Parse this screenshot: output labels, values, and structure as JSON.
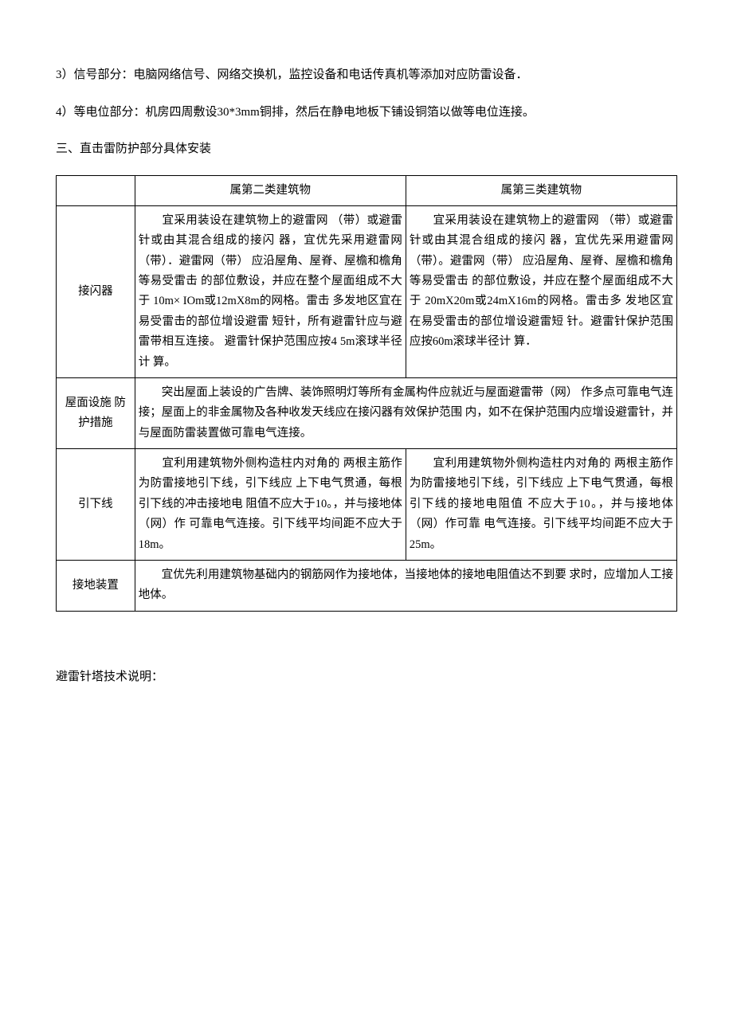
{
  "paragraphs": {
    "p1": "3）信号部分：电脑网络信号、网络交换机，监控设备和电话传真机等添加对应防雷设备．",
    "p2": "4）等电位部分：机房四周敷设30*3mm铜排，然后在静电地板下铺设铜箔以做等电位连接。",
    "p3": "三、直击雷防护部分具体安装"
  },
  "table": {
    "header": {
      "col1": "",
      "col2": "属第二类建筑物",
      "col3": "属第三类建筑物"
    },
    "rows": [
      {
        "label": "接闪器",
        "col2": "　　宜采用装设在建筑物上的避雷网 （带）或避雷针或由其混合组成的接闪  器，宜优先采用避雷网（带）．避雷网（带） 应沿屋角、屋脊、屋檐和檐角等易受雷击  的部位敷设，并应在整个屋面组成不大于    10m×  IOm或12mX8m的网格。雷击  多发地区宜在易受雷击的部位增设避雷    短针，所有避雷针应与避雷带相互连接。   避雷针保护范围应按4 5m滚球半径计  算。",
        "col3": "　　宜采用装设在建筑物上的避雷网 （带）或避雷针或由其混合组成的接闪  器，宜优先采用避雷网（带）。避雷网（带） 应沿屋角、屋脊、屋檐和檐角等易受雷击  的部位敷设，并应在整个屋面组成不大于         20mX20m或24mX16m的网格。雷击多  发地区宜在易受雷击的部位增设避雷短  针。避雷针保护范围应按60m滚球半径计  算．",
        "merged": false
      },
      {
        "label": "屋面设施 防护措施",
        "content": "　　突出屋面上装设的广告牌、装饰照明灯等所有金属构件应就近与屋面避雷带（网） 作多点可靠电气连接；屋面上的非金属物及各种收发天线应在接闪器有效保护范围  内，如不在保护范围内应增设避雷针，并与屋面防雷装置做可靠电气连接。",
        "merged": true
      },
      {
        "label": "引下线",
        "col2": "　　宜利用建筑物外侧构造柱内对角的    两根主筋作为防雷接地引下线，引下线应  上下电气贯通，每根引下线的冲击接地电  阻值不应大于10。，并与接地体（网）作  可靠电气连接。引下线平均间距不应大于  18m。",
        "col3": "　　宜利用建筑物外侧构造柱内对角的    两根主筋作为防雷接地引下线，引下线应  上下电气贯通，每根引下线的接地电阻值  不应大于10。，并与接地体（网）作可靠  电气连接。引下线平均间距不应大于25m。",
        "merged": false
      },
      {
        "label": "接地装置",
        "content": "　　宜优先利用建筑物基础内的钢筋网作为接地体，当接地体的接地电阻值达不到要      求时，应增加人工接地体。",
        "merged": true
      }
    ]
  },
  "footer": "避雷针塔技术说明："
}
